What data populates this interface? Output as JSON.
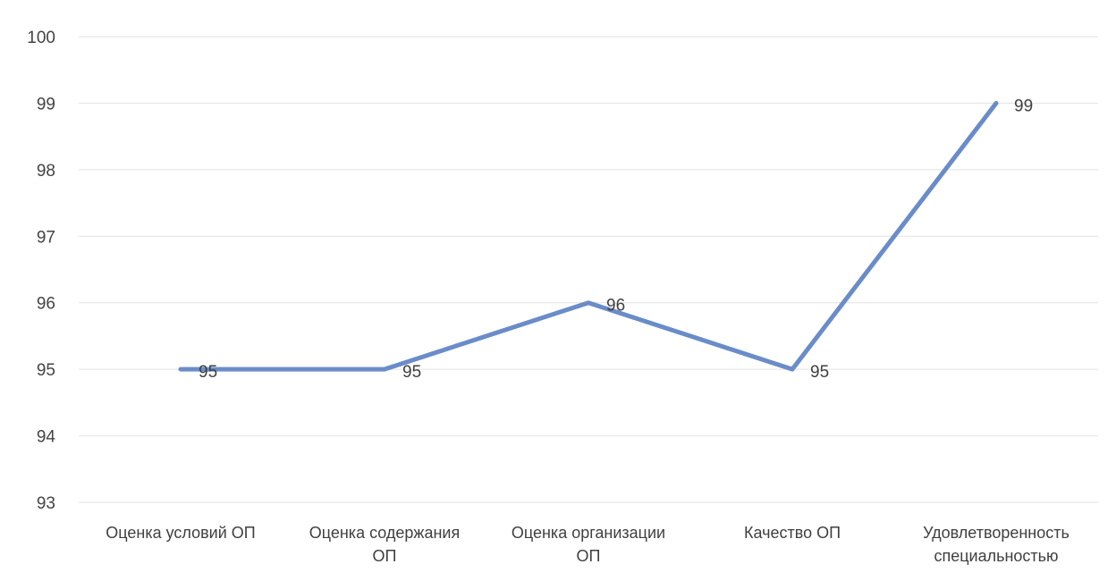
{
  "chart_data": {
    "type": "line",
    "title": "",
    "xlabel": "",
    "ylabel": "",
    "categories": [
      [
        "Оценка условий ОП"
      ],
      [
        "Оценка содержания",
        "ОП"
      ],
      [
        "Оценка организации",
        "ОП"
      ],
      [
        "Качество ОП"
      ],
      [
        "Удовлетворенность",
        "специальностью"
      ]
    ],
    "series": [
      {
        "values": [
          95,
          95,
          96,
          95,
          99
        ],
        "color": "#6a8cc8",
        "data_labels": [
          "95",
          "95",
          "96",
          "95",
          "99"
        ]
      }
    ],
    "ylim": [
      93,
      100
    ],
    "yticks": [
      "93",
      "94",
      "95",
      "96",
      "97",
      "98",
      "99",
      "100"
    ],
    "grid": true,
    "legend": "none",
    "gridline_color": "#e2e2e2"
  }
}
